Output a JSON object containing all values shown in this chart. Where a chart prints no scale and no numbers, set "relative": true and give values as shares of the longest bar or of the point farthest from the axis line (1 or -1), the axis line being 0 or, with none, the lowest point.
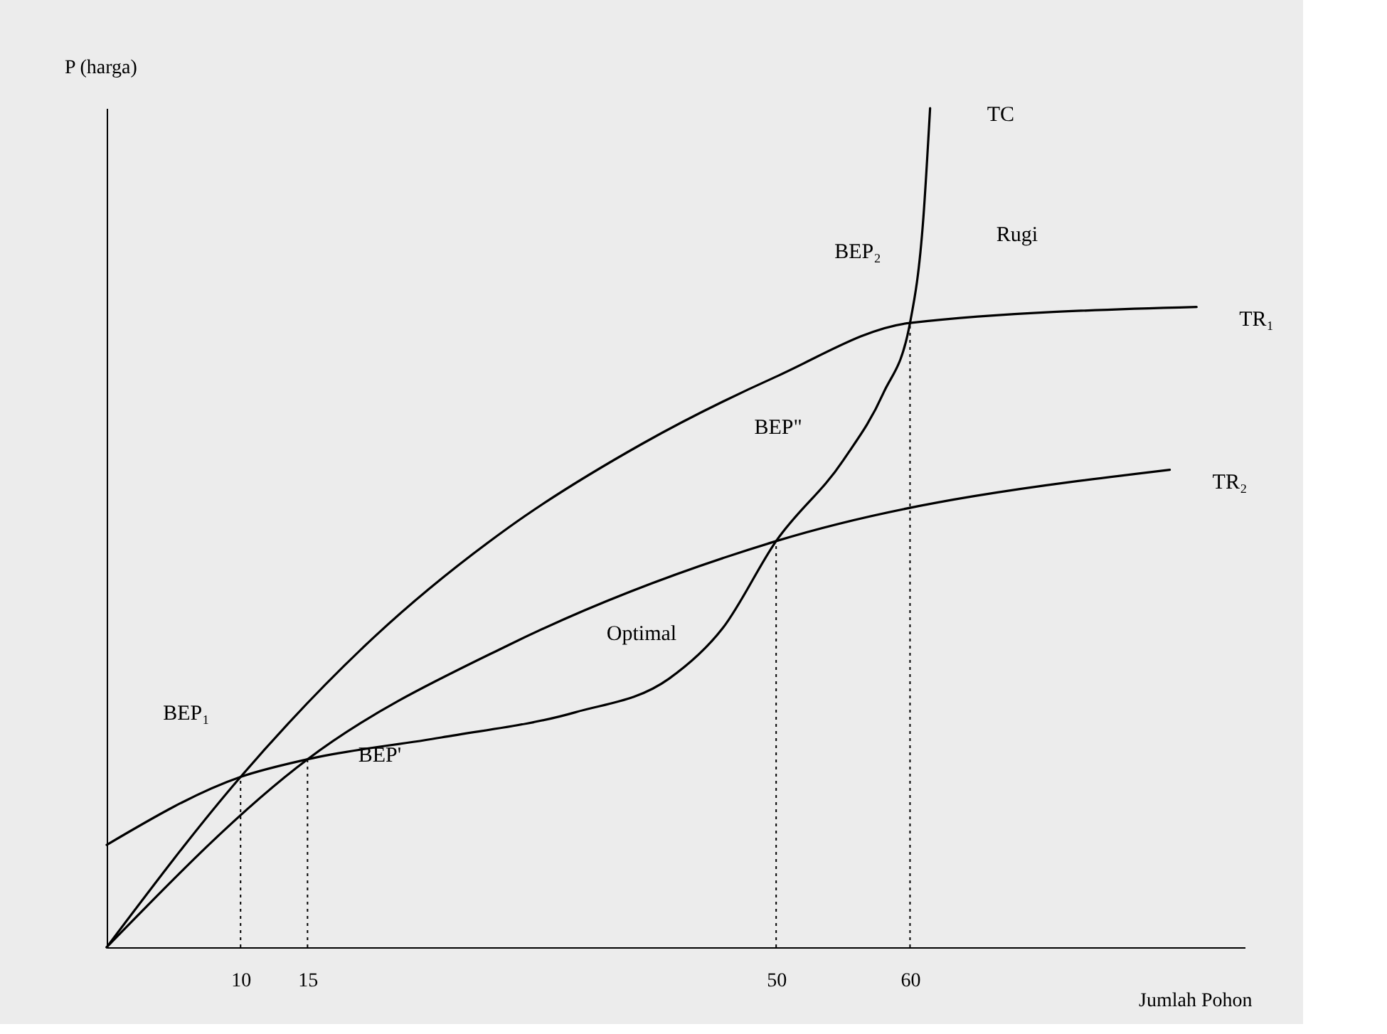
{
  "chart_data": {
    "type": "line",
    "relative": true,
    "xlabel": "Jumlah Pohon",
    "ylabel": "P (harga)",
    "xlim": [
      0,
      85
    ],
    "xticks": [
      10,
      15,
      50,
      60
    ],
    "grid": false,
    "marker": "none",
    "line_style": "solid",
    "series": [
      {
        "name": "TC",
        "color": "#000000",
        "x": [
          0,
          10,
          15,
          25,
          35,
          42,
          46,
          50,
          55,
          58,
          60,
          61,
          61.5
        ],
        "values": [
          0.122,
          0.203,
          0.224,
          0.25,
          0.28,
          0.32,
          0.38,
          0.484,
          0.58,
          0.66,
          0.744,
          0.87,
          1.0
        ]
      },
      {
        "name": "TR₁",
        "color": "#000000",
        "x": [
          0,
          10,
          20,
          30,
          40,
          50,
          60,
          81.4
        ],
        "values": [
          0,
          0.203,
          0.37,
          0.5,
          0.6,
          0.68,
          0.744,
          0.763
        ]
      },
      {
        "name": "TR₂",
        "color": "#000000",
        "x": [
          0,
          15,
          30,
          50,
          79.4
        ],
        "values": [
          0,
          0.224,
          0.36,
          0.484,
          0.569
        ]
      }
    ],
    "ref_lines": [
      {
        "axis": "x",
        "value": 10,
        "line_style": "dotted"
      },
      {
        "axis": "x",
        "value": 15,
        "line_style": "dotted"
      },
      {
        "axis": "x",
        "value": 50,
        "line_style": "dotted"
      },
      {
        "axis": "x",
        "value": 60,
        "line_style": "dotted"
      }
    ],
    "annotations": [
      "BEP₂",
      "Rugi",
      "BEP\"",
      "Optimal",
      "BEP₁",
      "BEP'"
    ]
  }
}
